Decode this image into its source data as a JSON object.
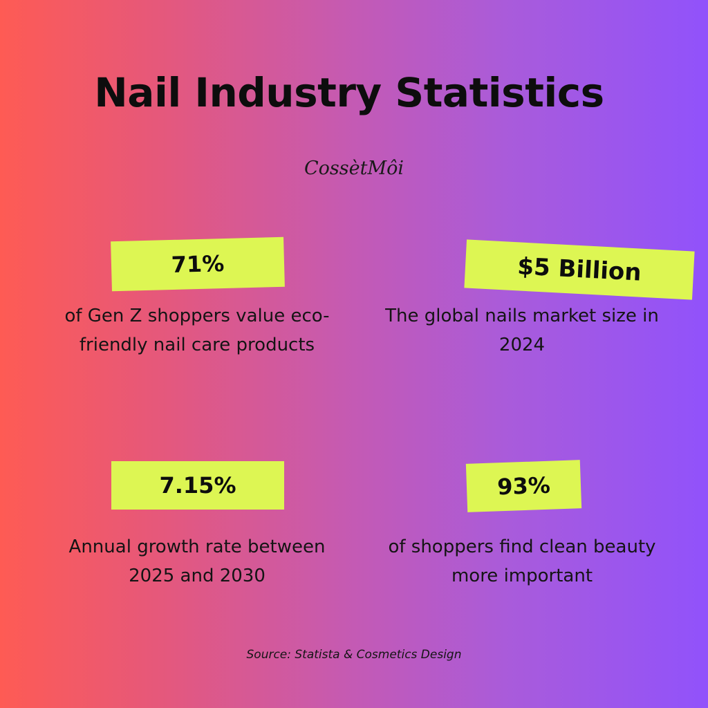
{
  "title": "Nail Industry Statistics",
  "brand": "CossètMôi",
  "stats": [
    {
      "value": "71%",
      "description": "of Gen Z shoppers value eco-friendly nail care products"
    },
    {
      "value": "$5 Billion",
      "description": "The global nails market size in 2024"
    },
    {
      "value": "7.15%",
      "description": "Annual growth rate between 2025 and 2030"
    },
    {
      "value": "93%",
      "description": "of shoppers find clean beauty more important"
    }
  ],
  "source": "Source: Statista & Cosmetics Design",
  "colors": {
    "gradient_left": "#fe5b54",
    "gradient_right": "#9152fb",
    "highlight": "#ddf653",
    "text": "#141414"
  }
}
